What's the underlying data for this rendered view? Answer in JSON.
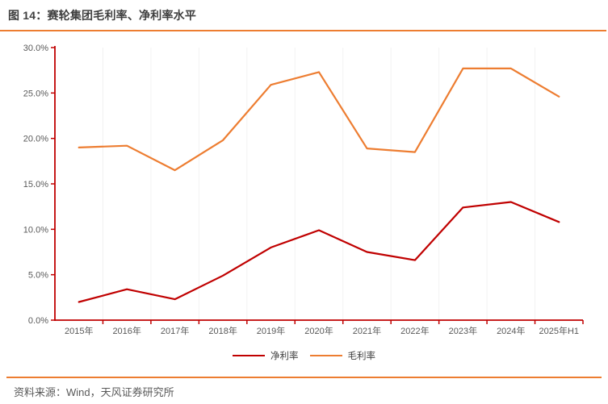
{
  "header": {
    "title": "图 14：赛轮集团毛利率、净利率水平"
  },
  "chart_data": {
    "type": "line",
    "title": "赛轮集团毛利率、净利率水平",
    "categories": [
      "2015年",
      "2016年",
      "2017年",
      "2018年",
      "2019年",
      "2020年",
      "2021年",
      "2022年",
      "2023年",
      "2024年",
      "2025年H1"
    ],
    "series": [
      {
        "key": "net-margin",
        "name": "净利率",
        "color": "#C00000",
        "values": [
          2.0,
          3.4,
          2.3,
          4.9,
          8.0,
          9.9,
          7.5,
          6.6,
          12.4,
          13.0,
          10.8
        ]
      },
      {
        "key": "gross-margin",
        "name": "毛利率",
        "color": "#ED7D31",
        "values": [
          19.0,
          19.2,
          16.5,
          19.8,
          25.9,
          27.3,
          18.9,
          18.5,
          27.7,
          27.7,
          24.6
        ]
      }
    ],
    "ylim": [
      0,
      30
    ],
    "y_tick_step": 5,
    "y_ticks": [
      "0.0%",
      "5.0%",
      "10.0%",
      "15.0%",
      "20.0%",
      "25.0%",
      "30.0%"
    ],
    "xlabel": "",
    "ylabel": "",
    "grid": "vertical-faint",
    "gridline_color": "#f2f2f2",
    "axis_color": "#C00000",
    "tick_label_color": "#595959",
    "legend_position": "bottom-center"
  },
  "footer": {
    "source": "资料来源：Wind，天风证券研究所"
  },
  "colors": {
    "accent_orange": "#ED7D31",
    "series_red": "#C00000",
    "title_gray": "#3f3f3f",
    "label_gray": "#595959"
  }
}
